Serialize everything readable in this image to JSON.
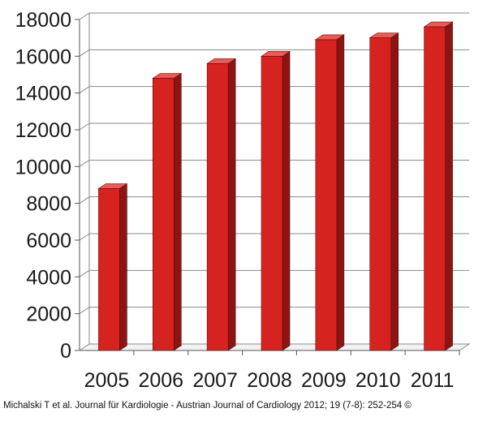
{
  "chart_data": {
    "type": "bar",
    "categories": [
      "2005",
      "2006",
      "2007",
      "2008",
      "2009",
      "2010",
      "2011"
    ],
    "values": [
      8800,
      14800,
      15600,
      16000,
      16900,
      17000,
      17600
    ],
    "ylim": [
      0,
      18000
    ],
    "yticks": [
      0,
      2000,
      4000,
      6000,
      8000,
      10000,
      12000,
      14000,
      16000,
      18000
    ],
    "grid": true,
    "legend": "none",
    "style": "3d",
    "colors": {
      "bar_front": "#d7231f",
      "bar_side": "#8d1412",
      "bar_top": "#e85b57",
      "grid": "#8a8a8a"
    }
  },
  "footer": {
    "credit": "Michalski T et al. Journal für Kardiologie - Austrian Journal of Cardiology 2012; 19 (7-8): 252-254 ©"
  }
}
